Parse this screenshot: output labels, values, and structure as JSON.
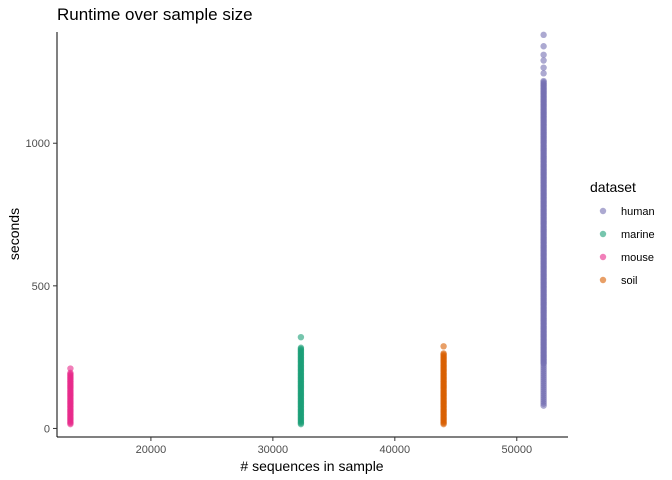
{
  "chart_data": {
    "type": "scatter",
    "title": "Runtime over sample size",
    "xlabel": "# sequences in sample",
    "ylabel": "seconds",
    "xlim": [
      12300,
      54200
    ],
    "ylim": [
      -30,
      1390
    ],
    "x_ticks": [
      20000,
      30000,
      40000,
      50000
    ],
    "y_ticks": [
      0,
      500,
      1000
    ],
    "grid": false,
    "legend": {
      "title": "dataset",
      "position": "right"
    },
    "series": [
      {
        "name": "human",
        "color": "#7570b3",
        "x": 52200,
        "dense_range": [
          230,
          1220
        ],
        "sparse_range": [
          80,
          230
        ],
        "outliers": [
          1245,
          1265,
          1290,
          1310,
          1340,
          1380
        ]
      },
      {
        "name": "marine",
        "color": "#1b9e77",
        "x": 32300,
        "dense_range": [
          15,
          285
        ],
        "outliers": [
          320
        ]
      },
      {
        "name": "mouse",
        "color": "#e7298a",
        "x": 13400,
        "dense_range": [
          15,
          195
        ],
        "outliers": [
          210
        ]
      },
      {
        "name": "soil",
        "color": "#d95f02",
        "x": 44000,
        "dense_range": [
          15,
          265
        ],
        "outliers": [
          288
        ]
      }
    ]
  }
}
